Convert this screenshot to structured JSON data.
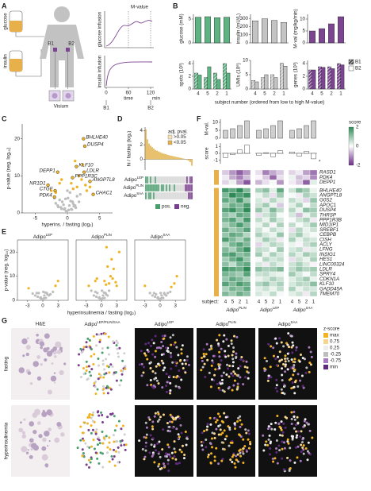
{
  "panel_labels": [
    "A",
    "B",
    "C",
    "D",
    "E",
    "F",
    "G"
  ],
  "panel_a": {
    "glucose": "glucose",
    "insulin": "insulin",
    "b1": "B1",
    "b2": "B2",
    "visium": "Visium",
    "mvalue": "M-value",
    "glucose_infusion": "glucose infusion",
    "insulin_infusion": "insulin infusion",
    "time": "time",
    "unit": "min",
    "time_ticks": [
      0,
      60,
      120
    ]
  },
  "panel_b": {
    "type": "bar",
    "categories": [
      "4",
      "5",
      "2",
      "1"
    ],
    "xlabel": "subject number (ordered from low to high M-value)",
    "charts": [
      {
        "ylabel": "glucose (mM)",
        "ylim": [
          0,
          6
        ],
        "yticks": [
          0,
          5
        ],
        "color": "#5db381",
        "series": [
          {
            "values": [
              5.4,
              5.5,
              5.3,
              5.4
            ]
          }
        ]
      },
      {
        "ylabel": "insulin (mU/L)",
        "ylim": [
          0,
          350
        ],
        "yticks": [
          0,
          100,
          200,
          300
        ],
        "color": "#c4c4c4",
        "series": [
          {
            "values": [
              270,
              295,
              275,
              250
            ]
          }
        ]
      },
      {
        "ylabel": "M-val (mg/kg/min)",
        "ylim": [
          0,
          12
        ],
        "yticks": [
          0,
          5,
          10
        ],
        "color": "#7b4591",
        "series": [
          {
            "values": [
              5,
              6,
              8,
              11
            ]
          }
        ]
      },
      {
        "ylabel": "spots (10³)",
        "ylim": [
          0,
          4.5
        ],
        "yticks": [
          0,
          2,
          4
        ],
        "color": "#5db381",
        "series": [
          {
            "name": "B1",
            "values": [
              2.5,
              1.8,
              2.5,
              4
            ]
          },
          {
            "name": "B2",
            "values": [
              2.2,
              3.5,
              1.5,
              2.5
            ]
          }
        ]
      },
      {
        "ylabel": "UMIs (10⁶)",
        "ylim": [
          0,
          10
        ],
        "yticks": [
          0,
          5,
          10
        ],
        "color": "#c4c4c4",
        "series": [
          {
            "name": "B1",
            "values": [
              3,
              4,
              5,
              9
            ]
          },
          {
            "name": "B2",
            "values": [
              2.5,
              5,
              4,
              8
            ]
          }
        ]
      },
      {
        "ylabel": "genes (10³)",
        "ylim": [
          0,
          4.5
        ],
        "yticks": [
          0,
          2,
          4
        ],
        "color": "#7b4591",
        "series": [
          {
            "name": "B1",
            "values": [
              3,
              3.5,
              3.5,
              4
            ]
          },
          {
            "name": "B2",
            "values": [
              3,
              3.4,
              3.2,
              3.8
            ]
          }
        ]
      }
    ]
  },
  "panel_c": {
    "type": "scatter",
    "ylabel": "p-value (neg. log₁₀)",
    "xlabel": "hyperins. / fasting (log₂)",
    "xlim": [
      -7,
      7
    ],
    "ylim": [
      0,
      24
    ],
    "xticks": [
      -5,
      0,
      5
    ],
    "yticks": [
      0,
      10,
      20
    ],
    "series": [
      {
        "color": "#bdbdbd",
        "x": [
          -0.5,
          0.3,
          -1,
          0.8,
          1.2,
          -0.2,
          0.1,
          -1.5,
          0.6,
          -0.8,
          1.5,
          -0.4,
          0.9,
          -1.2,
          0.2,
          2,
          -2,
          0.5,
          -0.6,
          1,
          -0.1,
          0.4,
          -0.9,
          1.8,
          -1.8,
          0.7,
          -0.3,
          1.3,
          0,
          -1.4
        ],
        "y": [
          1,
          2,
          1.5,
          3,
          2,
          0.5,
          4,
          2,
          1,
          3,
          4.5,
          1.2,
          2.5,
          3.5,
          0.8,
          5,
          4,
          3.2,
          2.2,
          1.8,
          0.3,
          5.5,
          1.1,
          3,
          2.6,
          0.9,
          3.8,
          1.4,
          6,
          1.6
        ]
      },
      {
        "color": "#f0b323",
        "x": [
          1.5,
          2.2,
          -1.2,
          3,
          0.9,
          1.8,
          -2.5,
          2.8,
          -0.9,
          1.2,
          3.5,
          -1.8,
          2.4,
          0.6
        ],
        "y": [
          7,
          9,
          8,
          6,
          6.5,
          10,
          6,
          7.5,
          9,
          14,
          7,
          5.5,
          13,
          8
        ]
      }
    ],
    "genes": [
      {
        "label": "BHLHE40",
        "x": 2.5,
        "y": 20
      },
      {
        "label": "DUSP4",
        "x": 2.7,
        "y": 18
      },
      {
        "label": "KLF10",
        "x": 1.4,
        "y": 12.5
      },
      {
        "label": "LDLR",
        "x": 2.6,
        "y": 11
      },
      {
        "label": "DEPP1",
        "x": -1.5,
        "y": 11
      },
      {
        "label": "PPP1R3C",
        "x": 0.8,
        "y": 9.5
      },
      {
        "label": "ANGPTL8",
        "x": 3.5,
        "y": 8.5
      },
      {
        "label": "NR1D1",
        "x": -3,
        "y": 7.5
      },
      {
        "label": "CTGF",
        "x": -1.9,
        "y": 6
      },
      {
        "label": "PDK4",
        "x": -2,
        "y": 4.3
      },
      {
        "label": "CHAC1",
        "x": 4,
        "y": 5
      }
    ]
  },
  "panel_d": {
    "type": "bar",
    "ylabel": "hi / fasting (log₂)",
    "ylim": [
      -1.5,
      4.5
    ],
    "yticks": [
      0,
      2,
      4
    ],
    "values": [
      4.2,
      2.8,
      2.2,
      1.9,
      1.7,
      1.5,
      1.3,
      1.2,
      1.1,
      1.0,
      0.9,
      0.8,
      0.75,
      0.7,
      0.6,
      0.55,
      0.5,
      0.45,
      0.4,
      0.35,
      0.3,
      0.25,
      0.2,
      0.15,
      0.1,
      0,
      -0.1,
      -0.2,
      -0.4,
      -0.9
    ],
    "legend_title": "adj. pval.",
    "legend": [
      {
        "label": ">0.05",
        "color": "#f5e2b5"
      },
      {
        "label": "<0.05",
        "color": "#e3b24a"
      }
    ],
    "rows": [
      {
        "base": "Adipo",
        "sup": "LEP"
      },
      {
        "base": "Adipo",
        "sup": "PLIN"
      },
      {
        "base": "Adipo",
        "sup": "SAA"
      }
    ],
    "heat": [
      [
        1,
        1,
        0,
        1,
        0,
        0,
        1,
        0,
        0,
        0,
        0,
        0,
        0,
        0,
        0,
        0,
        0,
        0,
        0,
        0,
        0,
        0,
        0,
        0,
        0,
        0,
        -1,
        0,
        -1,
        -1
      ],
      [
        1,
        1,
        1,
        1,
        1,
        1,
        1,
        1,
        1,
        0,
        1,
        1,
        0,
        1,
        0,
        1,
        0,
        0,
        1,
        0,
        0,
        0,
        0,
        0,
        0,
        -1,
        -1,
        -1,
        -1,
        -1
      ],
      [
        1,
        0,
        1,
        1,
        0,
        1,
        0,
        0,
        0,
        0,
        0,
        0,
        0,
        0,
        0,
        0,
        0,
        0,
        0,
        0,
        0,
        0,
        0,
        0,
        0,
        0,
        0,
        -1,
        -1,
        -1
      ]
    ],
    "empty_color": "#d6d6d6",
    "heat_legend": [
      {
        "label": "pos.",
        "color": "#4a9e6e"
      },
      {
        "label": "neg.",
        "color": "#7a3e8e"
      }
    ]
  },
  "panel_e": {
    "type": "scatter",
    "ylabel": "p-value (neg. log₁₀)",
    "xlabel": "hyperinsulinemia / fasting (log₂)",
    "xlim": [
      -5,
      5
    ],
    "ylim": [
      0,
      25
    ],
    "xticks": [
      -3,
      0,
      3
    ],
    "yticks": [
      0,
      10,
      20
    ],
    "plots": [
      {
        "title": {
          "base": "Adipo",
          "sup": "LEP"
        },
        "series": [
          {
            "color": "#bdbdbd",
            "x": [
              -0.5,
              0.3,
              -1,
              0.8,
              1.2,
              -0.2,
              0.1,
              -1.5,
              0.6,
              -0.8,
              1.5,
              -0.4,
              0.9,
              -1.2,
              0.2,
              2,
              -2,
              0.5
            ],
            "y": [
              1,
              2,
              1.5,
              3,
              2,
              0.5,
              3.5,
              2,
              1,
              3,
              2.5,
              1.2,
              2.5,
              3,
              0.8,
              3.5,
              2.8,
              3.2
            ]
          },
          {
            "color": "#f0b323",
            "x": [
              2.5,
              3,
              -2.8
            ],
            "y": [
              6,
              8,
              5
            ]
          }
        ]
      },
      {
        "title": {
          "base": "Adipo",
          "sup": "PLIN"
        },
        "series": [
          {
            "color": "#bdbdbd",
            "x": [
              -0.5,
              0.3,
              -1,
              0.8,
              1.2,
              -0.2,
              0.1,
              -1.5,
              0.6,
              -0.8,
              1.5,
              -0.4,
              0.9,
              -1.2,
              0.2,
              -2,
              0.5
            ],
            "y": [
              1,
              2,
              1.5,
              3,
              2,
              0.5,
              4,
              2,
              1,
              3,
              4,
              1.2,
              2.5,
              3.5,
              0.8,
              4,
              3.2
            ]
          },
          {
            "color": "#f0b323",
            "x": [
              1.5,
              2.2,
              -1.2,
              3,
              0.9,
              1.8,
              2.8,
              -0.9,
              1.2,
              3.5,
              2.4,
              0.6,
              1,
              2,
              -2.5
            ],
            "y": [
              7,
              9,
              8,
              6,
              6.5,
              10,
              7.5,
              9,
              14,
              20,
              13,
              8,
              22,
              17,
              6
            ]
          }
        ]
      },
      {
        "title": {
          "base": "Adipo",
          "sup": "SAA"
        },
        "series": [
          {
            "color": "#bdbdbd",
            "x": [
              -0.5,
              0.3,
              -1,
              0.8,
              1.2,
              -0.2,
              0.1,
              -1.5,
              0.6,
              -0.8,
              1.5,
              -0.4,
              0.9,
              -1.2,
              0.2,
              2,
              -2
            ],
            "y": [
              1,
              2,
              1.5,
              3,
              2,
              0.5,
              3,
              2,
              1,
              2.5,
              3,
              1.2,
              2.5,
              3,
              0.8,
              3.5,
              3
            ]
          },
          {
            "color": "#f0b323",
            "x": [
              2.8,
              3.3,
              -3,
              2.2
            ],
            "y": [
              7,
              10,
              6,
              5.5
            ]
          }
        ]
      }
    ]
  },
  "panel_f": {
    "type": "heatmap",
    "mval_label": "M-val.",
    "mval_ylim": [
      0,
      12
    ],
    "mval_yticks": [
      0,
      5,
      10
    ],
    "mvalues": [
      5,
      6,
      8,
      11
    ],
    "score_label": "score",
    "score_ylim": [
      -1.5,
      1.5
    ],
    "score_yticks": [
      -1,
      0,
      1
    ],
    "scores": [
      [
        -0.6,
        -0.2,
        0.5,
        1.2
      ],
      [
        -0.3,
        0.1,
        -0.5,
        0.4
      ],
      [
        0.2,
        -0.4,
        0.3,
        -0.8
      ]
    ],
    "score_note": "*",
    "legend_title": "score",
    "legend_ticks": [
      2,
      0,
      -2
    ],
    "pos_color": "#2e8b57",
    "neg_color": "#6a2c86",
    "subject_label": "subject:",
    "subjects": [
      "4",
      "5",
      "2",
      "1"
    ],
    "groups": [
      {
        "base": "Adipo",
        "sup": "PLIN"
      },
      {
        "base": "Adipo",
        "sup": "LEP"
      },
      {
        "base": "Adipo",
        "sup": "SAA"
      }
    ],
    "genes": [
      "RASD1",
      "PDK4",
      "DEPP1",
      "BHLHE40",
      "ANGPTL8",
      "G0S2",
      "APOC1",
      "DUSP4",
      "THRSP",
      "PPP1R3B",
      "MID1IP1",
      "SREBF1",
      "CEBPB",
      "CISH",
      "ACLY",
      "LFNG",
      "INSIG1",
      "HES1",
      "LINC00324",
      "LDLR",
      "SPRY4",
      "CDKN1A",
      "KLF10",
      "GADD45A",
      "TMEM70"
    ],
    "heat": [
      [
        -0.5,
        -1,
        -1.5,
        -1,
        -0.3,
        -1.2,
        -0.8,
        -0.5,
        -0.4,
        -0.2,
        -0.9,
        -1.3
      ],
      [
        -0.2,
        -0.8,
        -1.2,
        -0.6,
        -0.1,
        -0.5,
        -1.4,
        -0.3,
        0.2,
        -0.6,
        -0.4,
        -1.1
      ],
      [
        -0.4,
        0.2,
        -0.9,
        -1.6,
        -0.7,
        -0.3,
        0.1,
        -1,
        -0.2,
        -0.5,
        -1.5,
        0.3
      ],
      [
        1.8,
        1.5,
        2,
        1.2,
        0.8,
        1.1,
        0.3,
        1.5,
        0.5,
        1.2,
        0.9,
        0.2
      ],
      [
        1.2,
        2,
        1.6,
        1.9,
        0.2,
        0.6,
        -0.3,
        0.9,
        0.1,
        -0.2,
        0.8,
        0.5
      ],
      [
        1.5,
        1.1,
        1.8,
        0.9,
        0.4,
        -0.2,
        0.7,
        0.3,
        0.6,
        0.3,
        -0.4,
        1
      ],
      [
        0.9,
        1.4,
        1.2,
        1.7,
        0.5,
        0.9,
        0.2,
        -0.5,
        0.3,
        0.8,
        0.1,
        0.6
      ],
      [
        1.6,
        1.9,
        1.3,
        2,
        1,
        0.4,
        1.2,
        0.6,
        0.7,
        0.2,
        1.1,
        0.9
      ],
      [
        1.1,
        0.8,
        1.5,
        1.3,
        -0.3,
        0.5,
        0.8,
        0.1,
        0.4,
        -0.6,
        0.2,
        0.7
      ],
      [
        1.3,
        1.6,
        0.9,
        1.8,
        0.6,
        0.2,
        0.9,
        0.4,
        0.1,
        0.5,
        0.8,
        -0.2
      ],
      [
        0.8,
        1.2,
        1.7,
        1.1,
        0.2,
        0.7,
        -0.1,
        0.8,
        0.6,
        0.1,
        0.4,
        0.9
      ],
      [
        1.4,
        0.9,
        1.1,
        1.6,
        0.5,
        0.1,
        0.6,
        0.3,
        -0.3,
        0.7,
        0.2,
        0.5
      ],
      [
        1,
        1.5,
        1.3,
        0.7,
        0.8,
        0.4,
        0.2,
        1,
        0.5,
        0.9,
        0.3,
        0.1
      ],
      [
        1.7,
        1.2,
        0.8,
        1.4,
        0.3,
        0.9,
        0.5,
        -0.2,
        0.8,
        0.2,
        0.6,
        0.4
      ],
      [
        0.7,
        1.3,
        1.6,
        1.2,
        -0.4,
        0.3,
        0.7,
        0.5,
        0.2,
        -0.1,
        0.5,
        0.8
      ],
      [
        1.2,
        0.8,
        1.4,
        1.9,
        0.6,
        0.5,
        0.1,
        0.9,
        0.4,
        0.6,
        -0.2,
        0.3
      ],
      [
        1.5,
        1.7,
        1.1,
        1.3,
        0.9,
        0.2,
        0.8,
        0.4,
        0.7,
        0.3,
        0.9,
        0.6
      ],
      [
        0.9,
        1.4,
        1.8,
        1,
        0.1,
        0.7,
        0.4,
        0.6,
        -0.3,
        0.5,
        0.2,
        0.8
      ],
      [
        1.1,
        0.6,
        1.3,
        1.5,
        0.4,
        -0.2,
        0.6,
        0.3,
        0.5,
        0.8,
        0.4,
        -0.1
      ],
      [
        1.8,
        1.6,
        1.4,
        2,
        1.1,
        0.8,
        0.9,
        1.2,
        0.6,
        1,
        0.7,
        0.9
      ],
      [
        1.3,
        1.1,
        0.9,
        1.6,
        0.5,
        0.6,
        0.3,
        0.2,
        0.9,
        0.4,
        0.1,
        0.6
      ],
      [
        1,
        1.5,
        1.2,
        0.8,
        0.2,
        0.4,
        0.8,
        0.5,
        0.3,
        0.6,
        0.9,
        0.2
      ],
      [
        1.6,
        1.2,
        1.7,
        1.4,
        0.7,
        1,
        0.5,
        0.8,
        0.4,
        0.7,
        0.6,
        1.1
      ],
      [
        0.8,
        1.3,
        1.1,
        1.5,
        0.3,
        0.5,
        0.2,
        0.6,
        0.8,
        0.2,
        0.5,
        0.4
      ],
      [
        1.2,
        0.9,
        1.4,
        1.1,
        0.4,
        0.2,
        0.6,
        0.1,
        0.3,
        0.5,
        -0.2,
        0.7
      ]
    ]
  },
  "panel_g": {
    "columns": [
      "H&E",
      {
        "base": "Adipo",
        "sup": "LEP/PLIN/SAA"
      },
      {
        "base": "Adipo",
        "sup": "LEP"
      },
      {
        "base": "Adipo",
        "sup": "PLIN"
      },
      {
        "base": "Adipo",
        "sup": "SAA"
      }
    ],
    "rows": [
      "fasting",
      "hyperinsulinemia"
    ],
    "legend_title": "z-score",
    "levels": [
      "max",
      0.75,
      0.25,
      -0.25,
      -0.75,
      "min"
    ],
    "level_colors": [
      "#f0b323",
      "#f6d68e",
      "#ededed",
      "#bdbdbd",
      "#a779bf",
      "#5e2a7e"
    ]
  }
}
